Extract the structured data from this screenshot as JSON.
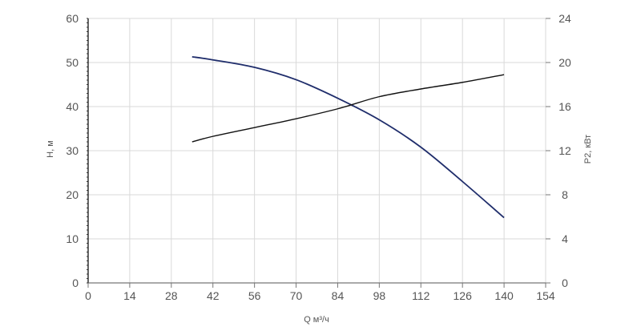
{
  "chart_data": {
    "type": "line",
    "xlabel": "Q м³/ч",
    "ylabel_left": "H, м",
    "ylabel_right": "P2, кВт",
    "x_ticks": [
      "0",
      "14",
      "28",
      "42",
      "56",
      "70",
      "84",
      "98",
      "112",
      "126",
      "140",
      "154"
    ],
    "y_left_ticks": [
      "0",
      "10",
      "20",
      "30",
      "40",
      "50",
      "60"
    ],
    "y_right_ticks": [
      "0",
      "4",
      "8",
      "12",
      "16",
      "20",
      "24"
    ],
    "xlim": [
      0,
      154
    ],
    "ylim_left": [
      0,
      60
    ],
    "ylim_right": [
      0,
      24
    ],
    "grid": true,
    "series": [
      {
        "axis": "left",
        "color": "#1f2d6b",
        "x": [
          35,
          42,
          56,
          70,
          84,
          98,
          112,
          126,
          140
        ],
        "y": [
          51.3,
          50.6,
          48.9,
          46.1,
          41.9,
          37.0,
          30.8,
          23.0,
          14.8
        ]
      },
      {
        "axis": "right",
        "color": "#111111",
        "x": [
          35,
          42,
          56,
          70,
          84,
          98,
          112,
          126,
          140
        ],
        "y": [
          12.8,
          13.3,
          14.1,
          14.9,
          15.8,
          16.9,
          17.6,
          18.2,
          18.9
        ]
      }
    ]
  }
}
